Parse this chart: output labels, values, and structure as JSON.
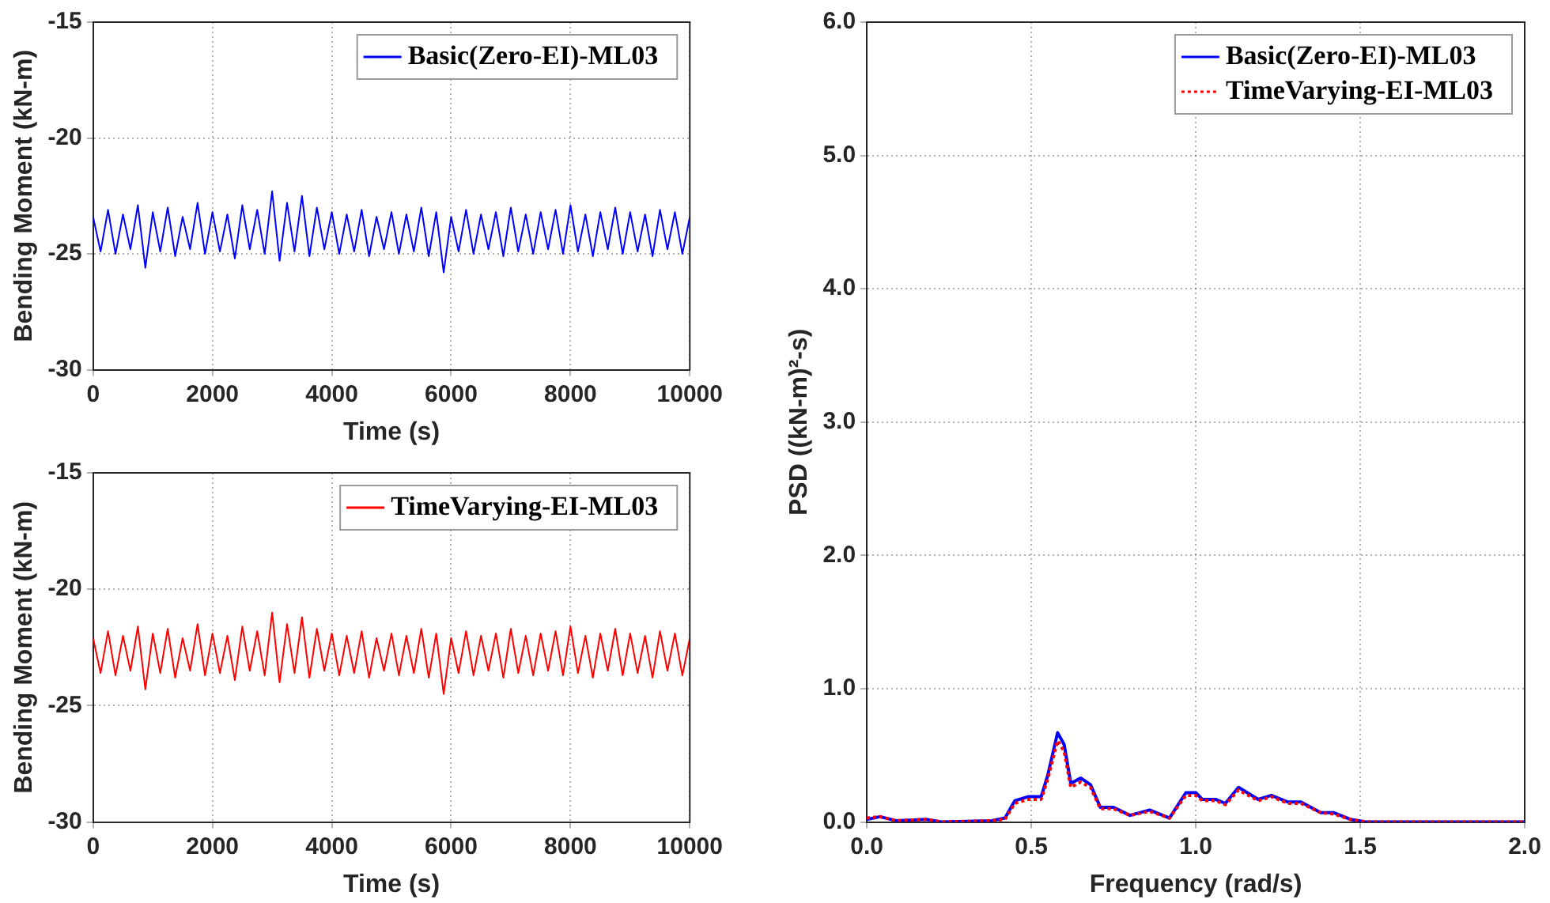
{
  "chart_data": [
    {
      "type": "line",
      "xlabel": "Time (s)",
      "ylabel": "Bending Moment (kN-m)",
      "xlim": [
        0,
        10000
      ],
      "xticks": [
        0,
        2000,
        4000,
        6000,
        8000,
        10000
      ],
      "ylim": [
        -30,
        -15
      ],
      "yticks": [
        -30,
        -25,
        -20,
        -15
      ],
      "grid": true,
      "legend": "top right",
      "marker": "none",
      "x": [
        0,
        125,
        250,
        375,
        500,
        625,
        750,
        875,
        1000,
        1125,
        1250,
        1375,
        1500,
        1625,
        1750,
        1875,
        2000,
        2125,
        2250,
        2375,
        2500,
        2625,
        2750,
        2875,
        3000,
        3125,
        3250,
        3375,
        3500,
        3625,
        3750,
        3875,
        4000,
        4125,
        4250,
        4375,
        4500,
        4625,
        4750,
        4875,
        5000,
        5125,
        5250,
        5375,
        5500,
        5625,
        5750,
        5875,
        6000,
        6125,
        6250,
        6375,
        6500,
        6625,
        6750,
        6875,
        7000,
        7125,
        7250,
        7375,
        7500,
        7625,
        7750,
        7875,
        8000,
        8125,
        8250,
        8375,
        8500,
        8625,
        8750,
        8875,
        9000,
        9125,
        9250,
        9375,
        9500,
        9625,
        9750,
        9875,
        10000
      ],
      "series": [
        {
          "name": "Basic(Zero-EI)-ML03",
          "color": "#0000ff",
          "line_style": "solid",
          "values": [
            -23.4,
            -24.9,
            -23.1,
            -25.0,
            -23.3,
            -24.8,
            -22.9,
            -25.6,
            -23.2,
            -24.9,
            -23.0,
            -25.1,
            -23.4,
            -24.8,
            -22.8,
            -25.0,
            -23.2,
            -24.9,
            -23.3,
            -25.2,
            -22.9,
            -24.8,
            -23.1,
            -25.0,
            -22.3,
            -25.3,
            -22.8,
            -24.9,
            -22.5,
            -25.1,
            -23.0,
            -24.8,
            -23.2,
            -25.0,
            -23.3,
            -24.9,
            -23.1,
            -25.1,
            -23.4,
            -24.8,
            -23.2,
            -25.0,
            -23.3,
            -24.9,
            -23.0,
            -25.1,
            -23.2,
            -25.8,
            -23.4,
            -24.9,
            -23.1,
            -25.0,
            -23.3,
            -24.8,
            -23.2,
            -25.1,
            -23.0,
            -24.9,
            -23.3,
            -25.0,
            -23.2,
            -24.8,
            -23.1,
            -25.0,
            -22.9,
            -24.9,
            -23.3,
            -25.1,
            -23.2,
            -24.8,
            -23.0,
            -25.0,
            -23.2,
            -24.9,
            -23.3,
            -25.1,
            -23.1,
            -24.8,
            -23.2,
            -25.0,
            -23.4
          ]
        }
      ]
    },
    {
      "type": "line",
      "xlabel": "Time (s)",
      "ylabel": "Bending Moment (kN-m)",
      "xlim": [
        0,
        10000
      ],
      "xticks": [
        0,
        2000,
        4000,
        6000,
        8000,
        10000
      ],
      "ylim": [
        -30,
        -15
      ],
      "yticks": [
        -30,
        -25,
        -20,
        -15
      ],
      "grid": true,
      "legend": "top right",
      "marker": "none",
      "x": [
        0,
        125,
        250,
        375,
        500,
        625,
        750,
        875,
        1000,
        1125,
        1250,
        1375,
        1500,
        1625,
        1750,
        1875,
        2000,
        2125,
        2250,
        2375,
        2500,
        2625,
        2750,
        2875,
        3000,
        3125,
        3250,
        3375,
        3500,
        3625,
        3750,
        3875,
        4000,
        4125,
        4250,
        4375,
        4500,
        4625,
        4750,
        4875,
        5000,
        5125,
        5250,
        5375,
        5500,
        5625,
        5750,
        5875,
        6000,
        6125,
        6250,
        6375,
        6500,
        6625,
        6750,
        6875,
        7000,
        7125,
        7250,
        7375,
        7500,
        7625,
        7750,
        7875,
        8000,
        8125,
        8250,
        8375,
        8500,
        8625,
        8750,
        8875,
        9000,
        9125,
        9250,
        9375,
        9500,
        9625,
        9750,
        9875,
        10000
      ],
      "series": [
        {
          "name": "TimeVarying-EI-ML03",
          "color": "#ff0000",
          "line_style": "solid",
          "values": [
            -22.1,
            -23.6,
            -21.8,
            -23.7,
            -22.0,
            -23.5,
            -21.6,
            -24.3,
            -21.9,
            -23.6,
            -21.7,
            -23.8,
            -22.1,
            -23.5,
            -21.5,
            -23.7,
            -21.9,
            -23.6,
            -22.0,
            -23.9,
            -21.6,
            -23.5,
            -21.8,
            -23.7,
            -21.0,
            -24.0,
            -21.5,
            -23.6,
            -21.2,
            -23.8,
            -21.7,
            -23.5,
            -21.9,
            -23.7,
            -22.0,
            -23.6,
            -21.8,
            -23.8,
            -22.1,
            -23.5,
            -21.9,
            -23.7,
            -22.0,
            -23.6,
            -21.7,
            -23.8,
            -21.9,
            -24.5,
            -22.1,
            -23.6,
            -21.8,
            -23.7,
            -22.0,
            -23.5,
            -21.9,
            -23.8,
            -21.7,
            -23.6,
            -22.0,
            -23.7,
            -21.9,
            -23.5,
            -21.8,
            -23.7,
            -21.6,
            -23.6,
            -22.0,
            -23.8,
            -21.9,
            -23.5,
            -21.7,
            -23.7,
            -21.9,
            -23.6,
            -22.0,
            -23.8,
            -21.8,
            -23.5,
            -21.9,
            -23.7,
            -22.1
          ]
        }
      ]
    },
    {
      "type": "line",
      "xlabel": "Frequency (rad/s)",
      "ylabel": "PSD ((kN-m)²-s)",
      "xlim": [
        0,
        2
      ],
      "xticks": [
        {
          "value": 0,
          "label": "0.0"
        },
        {
          "value": 0.5,
          "label": "0.5"
        },
        {
          "value": 1,
          "label": "1.0"
        },
        {
          "value": 1.5,
          "label": "1.5"
        },
        {
          "value": 2,
          "label": "2.0"
        }
      ],
      "ylim": [
        0,
        6
      ],
      "yticks": [
        {
          "value": 0,
          "label": "0.0"
        },
        {
          "value": 1,
          "label": "1.0"
        },
        {
          "value": 2,
          "label": "2.0"
        },
        {
          "value": 3,
          "label": "3.0"
        },
        {
          "value": 4,
          "label": "4.0"
        },
        {
          "value": 5,
          "label": "5.0"
        },
        {
          "value": 6,
          "label": "6.0"
        }
      ],
      "grid": true,
      "legend": "top right",
      "marker": "none",
      "x": [
        0,
        0.04,
        0.09,
        0.18,
        0.23,
        0.38,
        0.42,
        0.45,
        0.49,
        0.53,
        0.55,
        0.58,
        0.6,
        0.62,
        0.65,
        0.68,
        0.71,
        0.75,
        0.8,
        0.86,
        0.92,
        0.97,
        1.0,
        1.02,
        1.06,
        1.09,
        1.13,
        1.19,
        1.23,
        1.28,
        1.32,
        1.38,
        1.42,
        1.47,
        1.52,
        2.0
      ],
      "series": [
        {
          "name": "Basic(Zero-EI)-ML03",
          "color": "#0000ff",
          "line_style": "solid",
          "values": [
            0.02,
            0.04,
            0.01,
            0.02,
            0.0,
            0.01,
            0.03,
            0.16,
            0.19,
            0.19,
            0.35,
            0.67,
            0.58,
            0.29,
            0.33,
            0.28,
            0.11,
            0.11,
            0.05,
            0.09,
            0.03,
            0.22,
            0.22,
            0.17,
            0.17,
            0.14,
            0.26,
            0.17,
            0.2,
            0.15,
            0.15,
            0.07,
            0.07,
            0.02,
            0.0,
            0.0
          ]
        },
        {
          "name": "TimeVarying-EI-ML03",
          "color": "#ff0000",
          "line_style": "dotted",
          "values": [
            0.03,
            0.04,
            0.01,
            0.02,
            0.0,
            0.01,
            0.02,
            0.14,
            0.17,
            0.17,
            0.32,
            0.61,
            0.53,
            0.26,
            0.3,
            0.26,
            0.1,
            0.1,
            0.05,
            0.08,
            0.03,
            0.2,
            0.2,
            0.16,
            0.16,
            0.13,
            0.24,
            0.16,
            0.19,
            0.14,
            0.14,
            0.07,
            0.06,
            0.02,
            0.0,
            0.0
          ]
        }
      ]
    }
  ]
}
